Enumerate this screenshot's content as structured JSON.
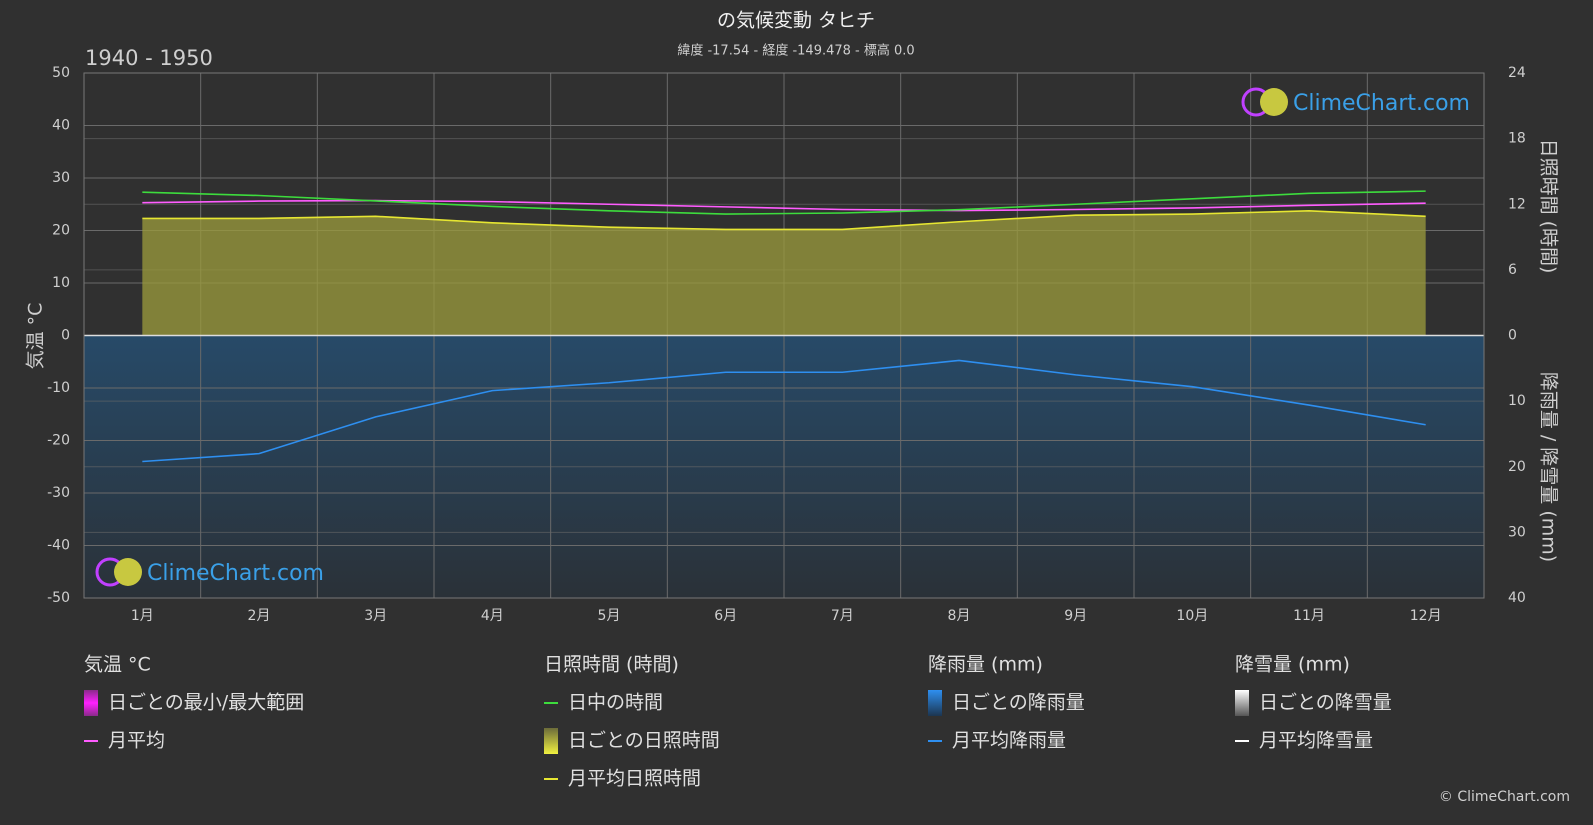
{
  "chart_data": {
    "type": "line",
    "title": "の気候変動 タヒチ",
    "subtitle": "緯度 -17.54 - 経度 -149.478 - 標高 0.0",
    "period": "1940 - 1950",
    "y_label": "気温 °C",
    "y2_label": "日照時間 (時間)",
    "y3_label": "降雨量 / 降雪量 (mm)",
    "categories": [
      "1月",
      "2月",
      "3月",
      "4月",
      "5月",
      "6月",
      "7月",
      "8月",
      "9月",
      "10月",
      "11月",
      "12月"
    ],
    "ylim": [
      -50,
      50
    ],
    "yticks": [
      50,
      40,
      30,
      20,
      10,
      0,
      -10,
      -20,
      -30,
      -40,
      -50
    ],
    "y2lim": [
      -24,
      24
    ],
    "y2ticks": [
      24,
      18,
      12,
      6,
      0
    ],
    "y3lim": [
      40,
      -40
    ],
    "y3ticks": [
      10,
      20,
      30,
      40
    ],
    "grid": true,
    "series": [
      {
        "name": "月平均",
        "color": "#ff5cff",
        "axis": "y",
        "values": [
          25.3,
          25.6,
          25.7,
          25.5,
          25.0,
          24.5,
          24.0,
          23.8,
          24.0,
          24.3,
          24.8,
          25.2
        ]
      },
      {
        "name": "日中の時間",
        "color": "#3ddc3d",
        "axis": "y2",
        "values": [
          13.1,
          12.8,
          12.3,
          11.8,
          11.4,
          11.1,
          11.2,
          11.5,
          12.0,
          12.5,
          13.0,
          13.2
        ]
      },
      {
        "name": "月平均日照時間",
        "color": "#e6e632",
        "axis": "y2",
        "values": [
          10.7,
          10.7,
          10.9,
          10.3,
          9.9,
          9.7,
          9.7,
          10.4,
          11.0,
          11.1,
          11.4,
          10.9
        ]
      },
      {
        "name": "月平均降雨量",
        "color": "#2e8ff0",
        "axis": "y3",
        "values": [
          19.2,
          18.0,
          12.4,
          8.4,
          7.2,
          5.6,
          5.6,
          3.8,
          6.0,
          7.8,
          10.6,
          13.6
        ]
      }
    ],
    "legend": {
      "groups": [
        {
          "title": "気温 °C",
          "items": [
            "日ごとの最小/最大範囲"
          ]
        },
        {
          "title": "日照時間 (時間)",
          "items": [
            "日ごとの日照時間"
          ]
        },
        {
          "title": "降雨量 (mm)",
          "items": [
            "日ごとの降雨量"
          ]
        },
        {
          "title": "降雪量 (mm)",
          "items": [
            "日ごとの降雪量",
            "月平均降雪量"
          ]
        }
      ]
    },
    "watermark": "ClimeChart.com",
    "copyright": "© ClimeChart.com"
  }
}
